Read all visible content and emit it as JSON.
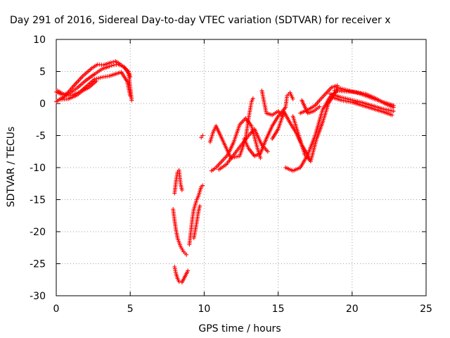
{
  "chart_data": {
    "type": "scatter",
    "title": "Day 291 of 2016, Sidereal Day-to-day VTEC variation (SDTVAR) for receiver x",
    "xlabel": "GPS time / hours",
    "ylabel": "SDTVAR / TECUs",
    "xlim": [
      0,
      25
    ],
    "ylim": [
      -30,
      10
    ],
    "xticks": [
      0,
      5,
      10,
      15,
      20,
      25
    ],
    "yticks": [
      -30,
      -25,
      -20,
      -15,
      -10,
      -5,
      0,
      5,
      10
    ],
    "grid": true,
    "marker": "plus",
    "color": "#ff0000",
    "series": [
      {
        "x": [
          0.0,
          0.4,
          0.9,
          1.4,
          2.0,
          2.6,
          3.1,
          3.6,
          3.9,
          4.2,
          4.6,
          4.9,
          5.0,
          5.1
        ],
        "y": [
          1.8,
          1.4,
          1.6,
          2.4,
          3.6,
          4.6,
          5.4,
          5.8,
          6.0,
          6.1,
          5.7,
          4.6,
          2.5,
          0.5
        ]
      },
      {
        "x": [
          0.0,
          0.6,
          1.2,
          1.8,
          2.4,
          2.8,
          3.2,
          3.7,
          4.0,
          4.3,
          4.6,
          4.9,
          5.0
        ],
        "y": [
          0.3,
          1.2,
          2.8,
          4.3,
          5.5,
          6.1,
          6.0,
          6.4,
          6.6,
          6.2,
          5.6,
          5.0,
          4.2
        ]
      },
      {
        "x": [
          0.1,
          0.6,
          1.1,
          1.6,
          2.1,
          2.6,
          3.1,
          3.6,
          4.0,
          4.4,
          4.8,
          5.0
        ],
        "y": [
          2.0,
          1.3,
          1.3,
          1.8,
          2.8,
          3.8,
          4.1,
          4.3,
          4.6,
          4.9,
          3.4,
          1.2
        ]
      },
      {
        "x": [
          0.2,
          0.8,
          1.4,
          1.8,
          2.2,
          2.7
        ],
        "y": [
          0.6,
          0.7,
          1.3,
          2.0,
          2.5,
          3.5
        ]
      },
      {
        "x": [
          8.0,
          8.1,
          8.2,
          8.3,
          8.5,
          8.7,
          8.9
        ],
        "y": [
          -25.5,
          -26.6,
          -27.3,
          -27.8,
          -27.9,
          -27.0,
          -26.1
        ]
      },
      {
        "x": [
          7.9,
          8.0,
          8.1,
          8.2,
          8.4,
          8.6,
          8.8
        ],
        "y": [
          -16.5,
          -18.3,
          -19.8,
          -21.0,
          -22.3,
          -23.1,
          -23.6
        ]
      },
      {
        "x": [
          8.0,
          8.1,
          8.2,
          8.3,
          8.4,
          8.5
        ],
        "y": [
          -14.0,
          -12.0,
          -10.7,
          -10.4,
          -12.5,
          -13.5
        ]
      },
      {
        "x": [
          9.0,
          9.1,
          9.2,
          9.3,
          9.5,
          9.6,
          9.8,
          9.9
        ],
        "y": [
          -22.0,
          -20.0,
          -18.0,
          -16.5,
          -15.0,
          -14.5,
          -13.0,
          -12.8
        ]
      },
      {
        "x": [
          9.3,
          9.5,
          9.6,
          9.7
        ],
        "y": [
          -21.0,
          -18.5,
          -17.0,
          -16.0
        ]
      },
      {
        "x": [
          9.8,
          9.9
        ],
        "y": [
          -5.3,
          -5.0
        ]
      },
      {
        "x": [
          10.4,
          10.6,
          10.8,
          11.2,
          11.8,
          12.4,
          12.8,
          13.0,
          13.2,
          13.3
        ],
        "y": [
          -6.0,
          -4.5,
          -3.5,
          -5.5,
          -8.5,
          -8.2,
          -5.5,
          -2.3,
          0.3,
          0.8
        ]
      },
      {
        "x": [
          10.5,
          10.8,
          11.2,
          11.6,
          12.0,
          12.4,
          12.8,
          13.2,
          13.6,
          13.8
        ],
        "y": [
          -10.5,
          -10.0,
          -9.0,
          -8.0,
          -6.0,
          -3.3,
          -2.3,
          -3.5,
          -7.0,
          -8.5
        ]
      },
      {
        "x": [
          11.0,
          11.5,
          12.0,
          12.5,
          13.0,
          13.4,
          13.9,
          14.3
        ],
        "y": [
          -10.3,
          -9.5,
          -8.0,
          -6.5,
          -5.0,
          -4.0,
          -6.5,
          -7.5
        ]
      },
      {
        "x": [
          12.7,
          13.0,
          13.4,
          13.8,
          14.2,
          14.6,
          15.0,
          15.3,
          15.5,
          15.6,
          15.8,
          16.0
        ],
        "y": [
          -5.5,
          -7.0,
          -8.2,
          -7.8,
          -5.5,
          -3.5,
          -2.0,
          -1.2,
          -0.6,
          1.2,
          1.7,
          0.7
        ]
      },
      {
        "x": [
          13.9,
          14.2,
          14.6,
          15.0,
          15.3
        ],
        "y": [
          2.0,
          -1.5,
          -1.8,
          -1.2,
          -2.0
        ]
      },
      {
        "x": [
          14.6,
          15.0,
          15.4,
          15.8,
          16.2,
          16.6,
          17.0,
          17.2
        ],
        "y": [
          -5.5,
          -4.0,
          -1.3,
          -3.0,
          -4.5,
          -6.5,
          -8.0,
          -9.0
        ]
      },
      {
        "x": [
          15.5,
          16.0,
          16.5,
          17.0,
          17.5,
          18.0,
          18.5,
          19.0
        ],
        "y": [
          -10.0,
          -10.5,
          -10.0,
          -8.0,
          -5.0,
          -1.0,
          1.0,
          2.0
        ]
      },
      {
        "x": [
          16.0,
          16.4,
          16.8,
          17.2,
          17.6,
          18.0,
          18.4,
          18.8,
          19.0
        ],
        "y": [
          -2.0,
          -5.0,
          -8.0,
          -9.0,
          -5.5,
          -3.0,
          0.0,
          1.5,
          2.5
        ]
      },
      {
        "x": [
          16.5,
          17.0,
          17.5,
          17.8,
          18.2,
          18.6,
          19.0
        ],
        "y": [
          -1.5,
          -1.0,
          -0.3,
          0.5,
          1.5,
          2.5,
          2.8
        ]
      },
      {
        "x": [
          16.6,
          17.0,
          17.4,
          17.8
        ],
        "y": [
          0.5,
          -1.5,
          -1.2,
          -0.5
        ]
      },
      {
        "x": [
          18.8,
          19.5,
          20.2,
          20.9,
          21.6,
          22.2,
          22.8
        ],
        "y": [
          2.0,
          1.9,
          1.8,
          1.5,
          0.8,
          0.0,
          -0.6
        ]
      },
      {
        "x": [
          18.5,
          19.2,
          19.9,
          20.6,
          21.3,
          22.0,
          22.8
        ],
        "y": [
          1.5,
          1.0,
          0.6,
          0.2,
          -0.3,
          -0.8,
          -1.2
        ]
      },
      {
        "x": [
          18.6,
          19.3,
          20.0,
          20.7,
          21.4,
          22.1,
          22.7
        ],
        "y": [
          1.0,
          0.5,
          0.2,
          -0.3,
          -0.8,
          -1.3,
          -1.8
        ]
      },
      {
        "x": [
          19.0,
          19.8,
          20.6,
          21.4,
          22.0,
          22.8
        ],
        "y": [
          2.5,
          2.0,
          1.5,
          0.8,
          0.3,
          -0.3
        ]
      }
    ]
  }
}
